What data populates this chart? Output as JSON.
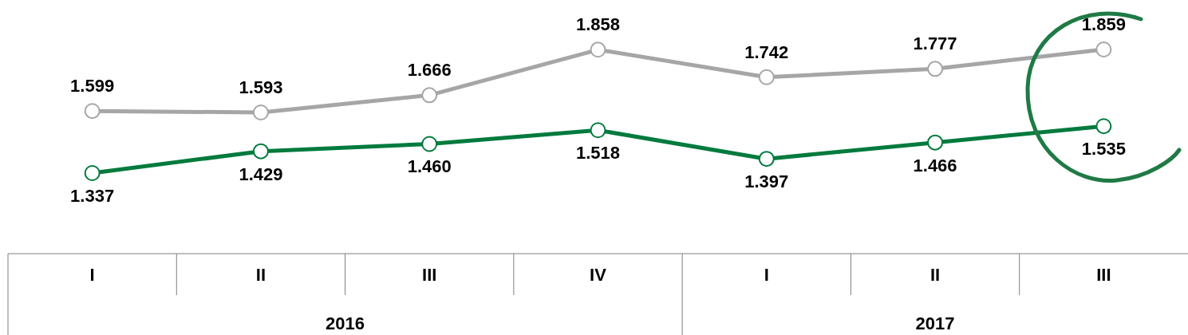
{
  "chart_data": {
    "type": "line",
    "categories": [
      "I",
      "II",
      "III",
      "IV",
      "I",
      "II",
      "III"
    ],
    "series": [
      {
        "color": "#a6a6a6",
        "values": [
          1.599,
          1.593,
          1.666,
          1.858,
          1.742,
          1.777,
          1.859
        ],
        "value_labels": [
          "1.599",
          "1.593",
          "1.666",
          "1.858",
          "1.742",
          "1.777",
          "1.859"
        ]
      },
      {
        "color": "#007a3d",
        "values": [
          1.337,
          1.429,
          1.46,
          1.518,
          1.397,
          1.466,
          1.535
        ],
        "value_labels": [
          "1.337",
          "1.429",
          "1.460",
          "1.518",
          "1.397",
          "1.466",
          "1.535"
        ]
      }
    ],
    "marker": "circle",
    "annotations": [
      "2016",
      "2017"
    ]
  }
}
